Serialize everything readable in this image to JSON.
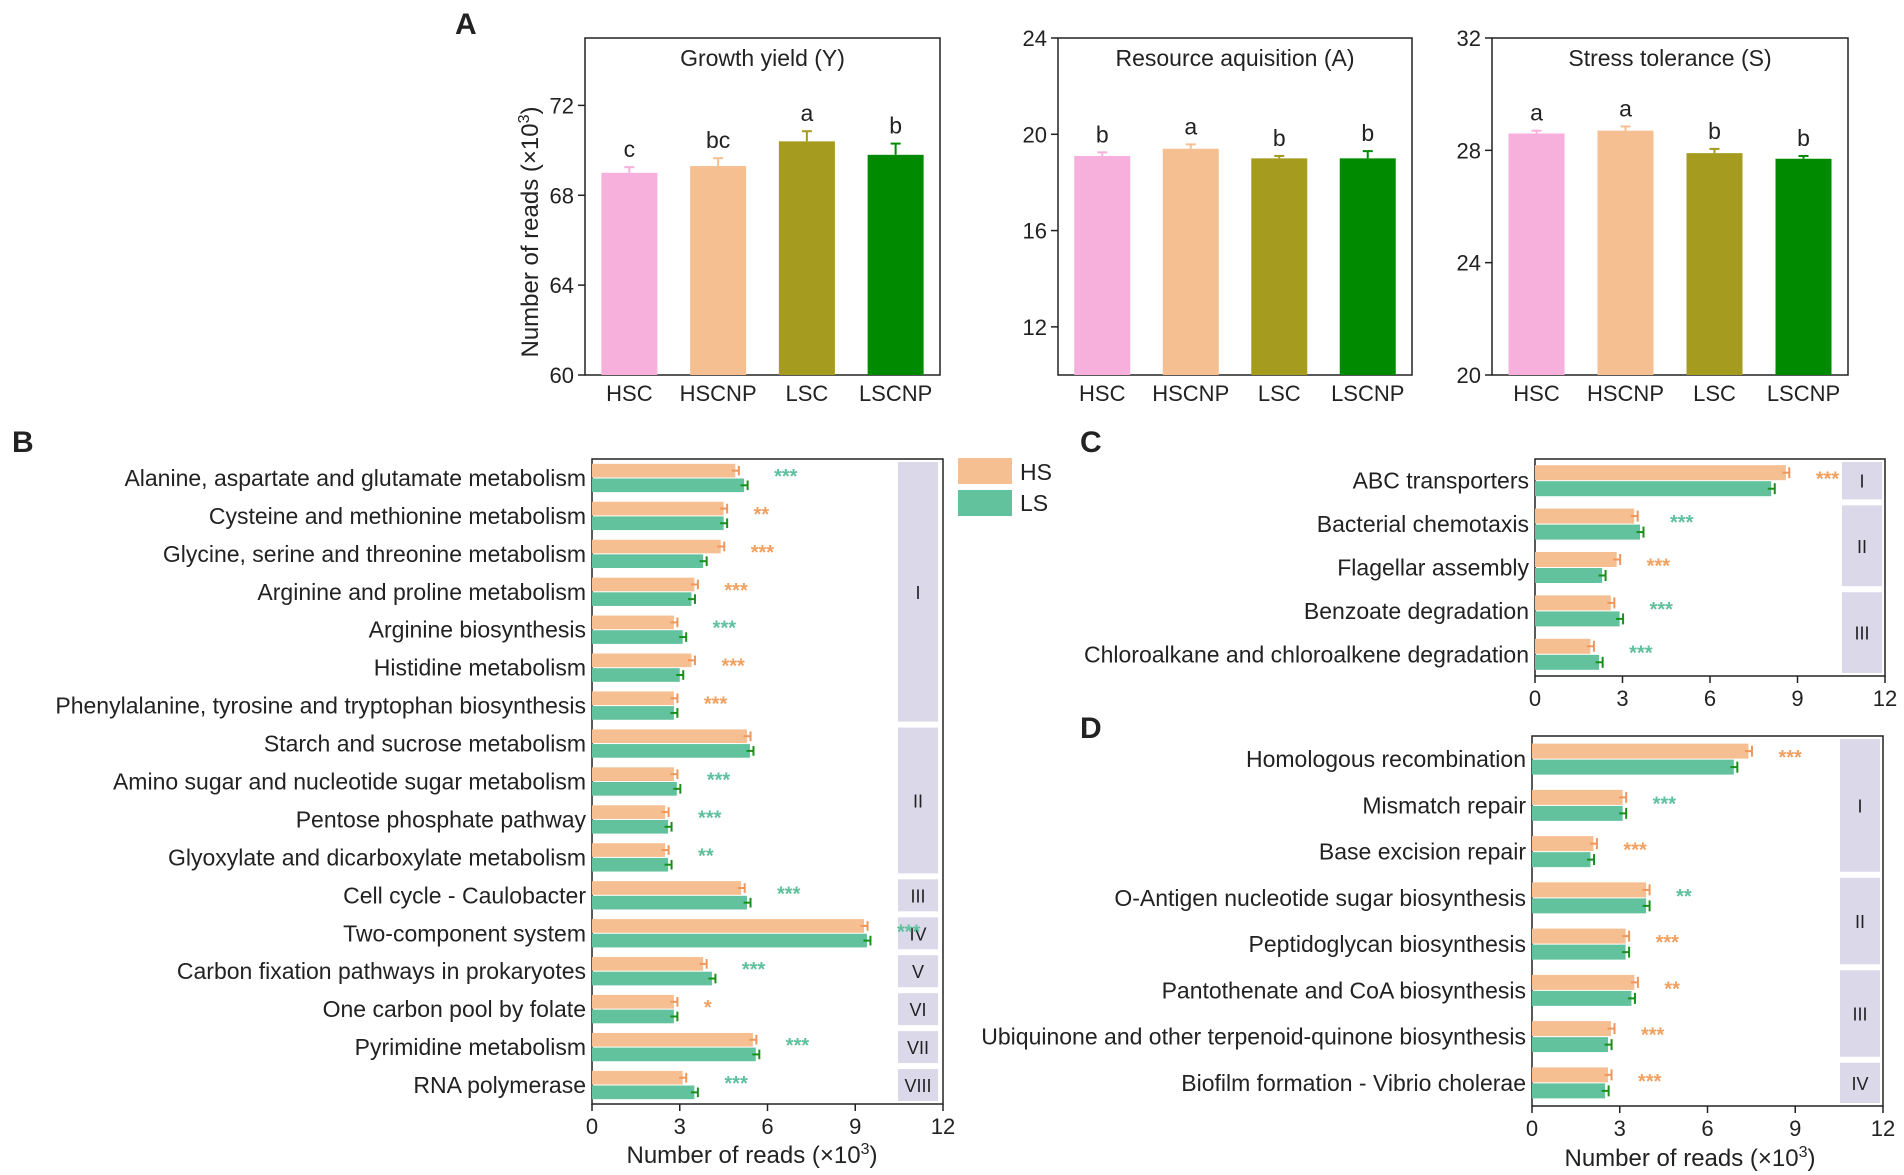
{
  "colors": {
    "HSC": "#f7b0dc",
    "HSCNP": "#f6bf92",
    "LSC": "#a49b1f",
    "LSCNP": "#008a00",
    "HS": "#f6bf92",
    "LS": "#62c29e",
    "HS_err": "#f0965a",
    "LS_err": "#1a8f1a",
    "group_bg": "#dbd8ea",
    "sig_hs": "#f0a060",
    "sig_ls": "#5ec09c"
  },
  "panel_labels": [
    "A",
    "B",
    "C",
    "D"
  ],
  "panelA": {
    "ylabel_main": "Number of reads (×10",
    "ylabel_exp": "3",
    "ylabel_close": ")",
    "categories": [
      "HSC",
      "HSCNP",
      "LSC",
      "LSCNP"
    ]
  },
  "legend": {
    "hs": "HS",
    "ls": "LS"
  },
  "xlabel_main": "Number of reads (×10",
  "xlabel_exp": "3",
  "xlabel_close": ")",
  "chart_data": [
    {
      "type": "bar",
      "panel": "A",
      "title": "Growth yield (Y)",
      "categories": [
        "HSC",
        "HSCNP",
        "LSC",
        "LSCNP"
      ],
      "values": [
        69.0,
        69.3,
        70.4,
        69.8
      ],
      "errors": [
        0.25,
        0.35,
        0.45,
        0.5
      ],
      "letters": [
        "c",
        "bc",
        "a",
        "b"
      ],
      "ylim": [
        60,
        75
      ],
      "yticks": [
        60,
        64,
        68,
        72
      ],
      "ylabel": "Number of reads (×10³)"
    },
    {
      "type": "bar",
      "panel": "A",
      "title": "Resource aquisition (A)",
      "categories": [
        "HSC",
        "HSCNP",
        "LSC",
        "LSCNP"
      ],
      "values": [
        19.1,
        19.4,
        19.0,
        19.0
      ],
      "errors": [
        0.15,
        0.18,
        0.1,
        0.3
      ],
      "letters": [
        "b",
        "a",
        "b",
        "b"
      ],
      "ylim": [
        10,
        24
      ],
      "yticks": [
        12,
        16,
        20,
        24
      ]
    },
    {
      "type": "bar",
      "panel": "A",
      "title": "Stress tolerance (S)",
      "categories": [
        "HSC",
        "HSCNP",
        "LSC",
        "LSCNP"
      ],
      "values": [
        28.6,
        28.7,
        27.9,
        27.7
      ],
      "errors": [
        0.1,
        0.15,
        0.15,
        0.1
      ],
      "letters": [
        "a",
        "a",
        "b",
        "b"
      ],
      "ylim": [
        20,
        32
      ],
      "yticks": [
        20,
        24,
        28,
        32
      ]
    },
    {
      "type": "bar",
      "orientation": "horizontal",
      "panel": "B",
      "xlim": [
        0,
        12
      ],
      "xticks": [
        0,
        3,
        6,
        9,
        12
      ],
      "xlabel": "Number of reads (×10³)",
      "series": [
        "HS",
        "LS"
      ],
      "categories": [
        "Alanine, aspartate and glutamate metabolism",
        "Cysteine and methionine metabolism",
        "Glycine, serine and threonine metabolism",
        "Arginine and proline metabolism",
        "Arginine biosynthesis",
        "Histidine metabolism",
        "Phenylalanine, tyrosine and tryptophan biosynthesis",
        "Starch and sucrose metabolism",
        "Amino sugar and nucleotide sugar metabolism",
        "Pentose phosphate pathway",
        "Glyoxylate and dicarboxylate metabolism",
        "Cell cycle - Caulobacter",
        "Two-component system",
        "Carbon fixation pathways in prokaryotes",
        "One carbon pool by folate",
        "Pyrimidine metabolism",
        "RNA polymerase"
      ],
      "hs": [
        4.9,
        4.5,
        4.4,
        3.5,
        2.8,
        3.4,
        2.8,
        5.3,
        2.8,
        2.5,
        2.5,
        5.1,
        9.3,
        3.8,
        2.8,
        5.5,
        3.1
      ],
      "ls": [
        5.2,
        4.5,
        3.8,
        3.4,
        3.1,
        3.0,
        2.8,
        5.4,
        2.9,
        2.6,
        2.6,
        5.3,
        9.4,
        4.1,
        2.8,
        5.6,
        3.5
      ],
      "sig": [
        "***",
        "**",
        "***",
        "***",
        "***",
        "***",
        "***",
        "",
        "***",
        "***",
        "**",
        "***",
        "***",
        "***",
        "*",
        "***",
        "***"
      ],
      "sig_series": [
        "ls",
        "hs",
        "hs",
        "hs",
        "ls",
        "hs",
        "hs",
        "",
        "ls",
        "ls",
        "ls",
        "ls",
        "ls",
        "ls",
        "hs",
        "ls",
        "ls"
      ],
      "groups": [
        {
          "label": "I",
          "start": 0,
          "end": 6
        },
        {
          "label": "II",
          "start": 7,
          "end": 10
        },
        {
          "label": "III",
          "start": 11,
          "end": 11
        },
        {
          "label": "IV",
          "start": 12,
          "end": 12
        },
        {
          "label": "V",
          "start": 13,
          "end": 13
        },
        {
          "label": "VI",
          "start": 14,
          "end": 14
        },
        {
          "label": "VII",
          "start": 15,
          "end": 15
        },
        {
          "label": "VIII",
          "start": 16,
          "end": 16
        }
      ]
    },
    {
      "type": "bar",
      "orientation": "horizontal",
      "panel": "C",
      "xlim": [
        0,
        12
      ],
      "xticks": [
        0,
        3,
        6,
        9,
        12
      ],
      "series": [
        "HS",
        "LS"
      ],
      "categories": [
        "ABC transporters",
        "Bacterial chemotaxis",
        "Flagellar assembly",
        "Benzoate degradation",
        "Chloroalkane and chloroalkene degradation"
      ],
      "hs": [
        8.6,
        3.4,
        2.8,
        2.6,
        1.9
      ],
      "ls": [
        8.1,
        3.6,
        2.3,
        2.9,
        2.2
      ],
      "sig": [
        "***",
        "***",
        "***",
        "***",
        "***"
      ],
      "sig_series": [
        "hs",
        "ls",
        "hs",
        "ls",
        "ls"
      ],
      "groups": [
        {
          "label": "I",
          "start": 0,
          "end": 0
        },
        {
          "label": "II",
          "start": 1,
          "end": 2
        },
        {
          "label": "III",
          "start": 3,
          "end": 4
        }
      ]
    },
    {
      "type": "bar",
      "orientation": "horizontal",
      "panel": "D",
      "xlim": [
        0,
        12
      ],
      "xticks": [
        0,
        3,
        6,
        9,
        12
      ],
      "xlabel": "Number of reads (×10³)",
      "series": [
        "HS",
        "LS"
      ],
      "categories": [
        "Homologous recombination",
        "Mismatch repair",
        "Base excision repair",
        "O-Antigen nucleotide sugar biosynthesis",
        "Peptidoglycan biosynthesis",
        "Pantothenate and CoA biosynthesis",
        "Ubiquinone and other terpenoid-quinone biosynthesis",
        "Biofilm formation - Vibrio cholerae"
      ],
      "hs": [
        7.4,
        3.1,
        2.1,
        3.9,
        3.2,
        3.5,
        2.7,
        2.6
      ],
      "ls": [
        6.9,
        3.1,
        2.0,
        3.9,
        3.2,
        3.4,
        2.6,
        2.5
      ],
      "sig": [
        "***",
        "***",
        "***",
        "**",
        "***",
        "**",
        "***",
        "***"
      ],
      "sig_series": [
        "hs",
        "ls",
        "hs",
        "ls",
        "hs",
        "hs",
        "hs",
        "hs"
      ],
      "groups": [
        {
          "label": "I",
          "start": 0,
          "end": 2
        },
        {
          "label": "II",
          "start": 3,
          "end": 4
        },
        {
          "label": "III",
          "start": 5,
          "end": 6
        },
        {
          "label": "IV",
          "start": 7,
          "end": 7
        }
      ]
    }
  ]
}
